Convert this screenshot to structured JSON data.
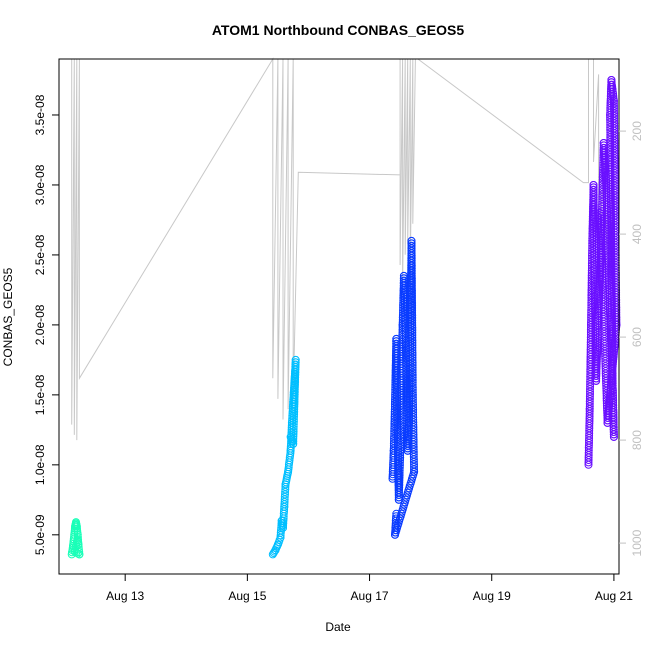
{
  "chart_data": {
    "type": "scatter",
    "title": "ATOM1 Northbound CONBAS_GEOS5",
    "xlabel": "Date",
    "ylabel": "CONBAS_GEOS5",
    "x_ticks": [
      {
        "date": "2016-08-13",
        "label": "Aug 13"
      },
      {
        "date": "2016-08-15",
        "label": "Aug 15"
      },
      {
        "date": "2016-08-17",
        "label": "Aug 17"
      },
      {
        "date": "2016-08-19",
        "label": "Aug 19"
      },
      {
        "date": "2016-08-21",
        "label": "Aug 21"
      }
    ],
    "xlim": [
      "2016-08-11T22:00",
      "2016-08-21T02:00"
    ],
    "ylim": [
      2.2e-09,
      3.9e-08
    ],
    "y_ticks": [
      {
        "value": 5e-09,
        "label": "5.0e-09"
      },
      {
        "value": 1e-08,
        "label": "1.0e-08"
      },
      {
        "value": 1.5e-08,
        "label": "1.5e-08"
      },
      {
        "value": 2e-08,
        "label": "2.0e-08"
      },
      {
        "value": 2.5e-08,
        "label": "2.5e-08"
      },
      {
        "value": 3e-08,
        "label": "3.0e-08"
      },
      {
        "value": 3.5e-08,
        "label": "3.5e-08"
      }
    ],
    "y2_range": [
      60,
      1060
    ],
    "y2_ticks": [
      {
        "value": 200,
        "label": "200"
      },
      {
        "value": 400,
        "label": "400"
      },
      {
        "value": 600,
        "label": "600"
      },
      {
        "value": 800,
        "label": "800"
      },
      {
        "value": 1000,
        "label": "1000"
      }
    ],
    "grid": false,
    "legend": "none",
    "series": [
      {
        "color": "#1affb8",
        "points": [
          [
            "2016-08-12T03:00",
            3.6e-09
          ],
          [
            "2016-08-12T03:30",
            4.2e-09
          ],
          [
            "2016-08-12T04:00",
            5e-09
          ],
          [
            "2016-08-12T04:20",
            5.6e-09
          ],
          [
            "2016-08-12T04:40",
            5.9e-09
          ],
          [
            "2016-08-12T05:00",
            5.6e-09
          ],
          [
            "2016-08-12T05:20",
            5e-09
          ],
          [
            "2016-08-12T05:40",
            4.3e-09
          ],
          [
            "2016-08-12T06:00",
            3.6e-09
          ],
          [
            "2016-08-12T04:10",
            3.8e-09
          ],
          [
            "2016-08-12T05:10",
            4.6e-09
          ]
        ]
      },
      {
        "color": "#00bfff",
        "points": [
          [
            "2016-08-15T10:00",
            3.6e-09
          ],
          [
            "2016-08-15T11:00",
            3.9e-09
          ],
          [
            "2016-08-15T12:00",
            4.3e-09
          ],
          [
            "2016-08-15T13:00",
            4.8e-09
          ],
          [
            "2016-08-15T13:30",
            6e-09
          ],
          [
            "2016-08-15T14:00",
            5.5e-09
          ],
          [
            "2016-08-15T14:30",
            7e-09
          ],
          [
            "2016-08-15T15:00",
            8.6e-09
          ],
          [
            "2016-08-15T16:00",
            9.5e-09
          ],
          [
            "2016-08-15T17:00",
            1.1e-08
          ],
          [
            "2016-08-15T17:30",
            1.3e-08
          ],
          [
            "2016-08-15T18:00",
            1.45e-08
          ],
          [
            "2016-08-15T18:30",
            1.6e-08
          ],
          [
            "2016-08-15T19:00",
            1.75e-08
          ],
          [
            "2016-08-15T18:00",
            1.15e-08
          ],
          [
            "2016-08-15T17:00",
            1.2e-08
          ]
        ]
      },
      {
        "color": "#0a3cff",
        "points": [
          [
            "2016-08-17T09:00",
            9e-09
          ],
          [
            "2016-08-17T09:30",
            1.1e-08
          ],
          [
            "2016-08-17T10:00",
            1.45e-08
          ],
          [
            "2016-08-17T10:30",
            1.9e-08
          ],
          [
            "2016-08-17T11:00",
            1.2e-08
          ],
          [
            "2016-08-17T11:30",
            7.5e-09
          ],
          [
            "2016-08-17T12:00",
            1.05e-08
          ],
          [
            "2016-08-17T12:30",
            1.55e-08
          ],
          [
            "2016-08-17T13:00",
            2e-08
          ],
          [
            "2016-08-17T13:30",
            2.35e-08
          ],
          [
            "2016-08-17T14:00",
            2.1e-08
          ],
          [
            "2016-08-17T14:30",
            1.6e-08
          ],
          [
            "2016-08-17T15:00",
            1.1e-08
          ],
          [
            "2016-08-17T15:30",
            1.3e-08
          ],
          [
            "2016-08-17T16:00",
            1.9e-08
          ],
          [
            "2016-08-17T16:30",
            2.6e-08
          ],
          [
            "2016-08-17T17:00",
            1.5e-08
          ],
          [
            "2016-08-17T17:30",
            9.5e-09
          ],
          [
            "2016-08-17T10:00",
            5e-09
          ],
          [
            "2016-08-17T10:30",
            6.5e-09
          ]
        ]
      },
      {
        "color": "#6a10ff",
        "points": [
          [
            "2016-08-20T14:00",
            1e-08
          ],
          [
            "2016-08-20T14:30",
            1.4e-08
          ],
          [
            "2016-08-20T15:00",
            2e-08
          ],
          [
            "2016-08-20T15:30",
            2.6e-08
          ],
          [
            "2016-08-20T16:00",
            3e-08
          ],
          [
            "2016-08-20T16:30",
            2.2e-08
          ],
          [
            "2016-08-20T17:00",
            1.6e-08
          ],
          [
            "2016-08-20T18:00",
            2.1e-08
          ],
          [
            "2016-08-20T19:00",
            2.6e-08
          ],
          [
            "2016-08-20T20:00",
            3.3e-08
          ],
          [
            "2016-08-20T21:00",
            3e-08
          ],
          [
            "2016-08-20T22:00",
            2.4e-08
          ],
          [
            "2016-08-20T23:00",
            1.9e-08
          ],
          [
            "2016-08-21T00:00",
            1.2e-08
          ],
          [
            "2016-08-20T23:30",
            1.6e-08
          ],
          [
            "2016-08-20T22:30",
            3.5e-08
          ],
          [
            "2016-08-20T23:00",
            3.75e-08
          ],
          [
            "2016-08-21T00:00",
            3.6e-08
          ],
          [
            "2016-08-21T00:30",
            2.8e-08
          ],
          [
            "2016-08-21T01:00",
            2e-08
          ],
          [
            "2016-08-20T21:30",
            1.3e-08
          ],
          [
            "2016-08-20T18:30",
            2.8e-08
          ]
        ]
      }
    ],
    "secondary_line": {
      "color": "#c8c8c8",
      "points": [
        [
          "2016-08-12T03:00",
          60
        ],
        [
          "2016-08-12T03:00",
          770
        ],
        [
          "2016-08-12T04:00",
          60
        ],
        [
          "2016-08-12T04:00",
          790
        ],
        [
          "2016-08-12T05:00",
          60
        ],
        [
          "2016-08-12T05:00",
          800
        ],
        [
          "2016-08-12T06:00",
          60
        ],
        [
          "2016-08-12T06:00",
          680
        ],
        [
          "2016-08-15T10:00",
          60
        ],
        [
          "2016-08-15T10:00",
          680
        ],
        [
          "2016-08-15T12:00",
          60
        ],
        [
          "2016-08-15T12:00",
          720
        ],
        [
          "2016-08-15T14:00",
          60
        ],
        [
          "2016-08-15T14:00",
          760
        ],
        [
          "2016-08-15T16:00",
          60
        ],
        [
          "2016-08-15T16:00",
          740
        ],
        [
          "2016-08-15T18:00",
          60
        ],
        [
          "2016-08-15T18:00",
          720
        ],
        [
          "2016-08-15T20:00",
          280
        ],
        [
          "2016-08-17T12:00",
          285
        ],
        [
          "2016-08-17T12:00",
          60
        ],
        [
          "2016-08-17T12:00",
          460
        ],
        [
          "2016-08-17T13:00",
          60
        ],
        [
          "2016-08-17T13:00",
          500
        ],
        [
          "2016-08-17T14:00",
          60
        ],
        [
          "2016-08-17T14:00",
          440
        ],
        [
          "2016-08-17T15:00",
          60
        ],
        [
          "2016-08-17T15:00",
          420
        ],
        [
          "2016-08-17T16:00",
          60
        ],
        [
          "2016-08-17T16:00",
          460
        ],
        [
          "2016-08-17T17:00",
          60
        ],
        [
          "2016-08-17T17:00",
          380
        ],
        [
          "2016-08-17T18:00",
          60
        ],
        [
          "2016-08-17T19:00",
          50
        ],
        [
          "2016-08-20T12:00",
          300
        ],
        [
          "2016-08-20T14:00",
          300
        ],
        [
          "2016-08-20T14:00",
          60
        ],
        [
          "2016-08-20T16:00",
          60
        ],
        [
          "2016-08-20T16:00",
          260
        ],
        [
          "2016-08-20T18:00",
          90
        ],
        [
          "2016-08-20T18:00",
          460
        ],
        [
          "2016-08-20T20:00",
          260
        ],
        [
          "2016-08-20T22:00",
          500
        ]
      ]
    }
  }
}
